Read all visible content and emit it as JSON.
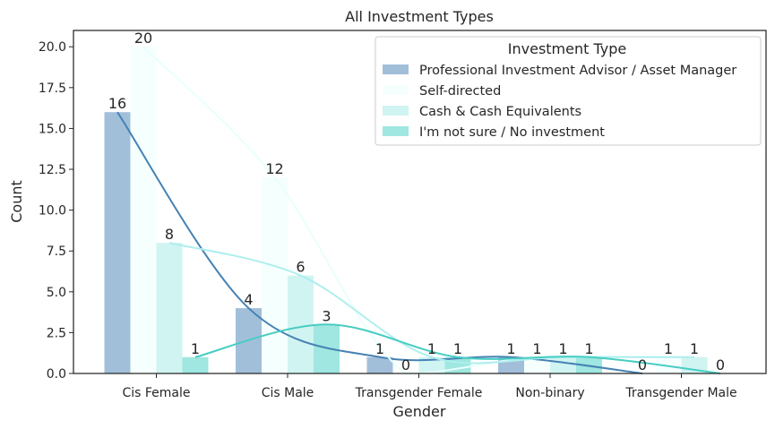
{
  "chart_data": {
    "type": "bar",
    "title": "All Investment Types",
    "xlabel": "Gender",
    "ylabel": "Count",
    "ylim": [
      0,
      21
    ],
    "yticks": [
      "0.0",
      "2.5",
      "5.0",
      "7.5",
      "10.0",
      "12.5",
      "15.0",
      "17.5",
      "20.0"
    ],
    "categories": [
      "Cis Female",
      "Cis Male",
      "Transgender Female",
      "Non-binary",
      "Transgender Male"
    ],
    "legend": {
      "title": "Investment Type",
      "placement": "top-right"
    },
    "grid": false,
    "series": [
      {
        "name": "Professional Investment Advisor / Asset Manager",
        "values": [
          16,
          4,
          1,
          1,
          0
        ],
        "color": "#a2bfda",
        "line_color": "#4682b4",
        "labels": [
          "16",
          "4",
          "1",
          "1",
          "0"
        ]
      },
      {
        "name": "Self-directed",
        "values": [
          20,
          12,
          0,
          1,
          1
        ],
        "color": "#f5fffe",
        "line_color": "#e8fffd",
        "labels": [
          "20",
          "12",
          "0",
          "1",
          "1"
        ]
      },
      {
        "name": "Cash & Cash Equivalents",
        "values": [
          8,
          6,
          1,
          1,
          1
        ],
        "color": "#d0f4f1",
        "line_color": "#aeeeee",
        "labels": [
          "8",
          "6",
          "1",
          "1",
          "1"
        ]
      },
      {
        "name": "I'm not sure / No investment",
        "values": [
          1,
          3,
          1,
          1,
          0
        ],
        "color": "#9fe7e0",
        "line_color": "#48cdc2",
        "labels": [
          "1",
          "3",
          "1",
          "1",
          "0"
        ]
      }
    ]
  }
}
